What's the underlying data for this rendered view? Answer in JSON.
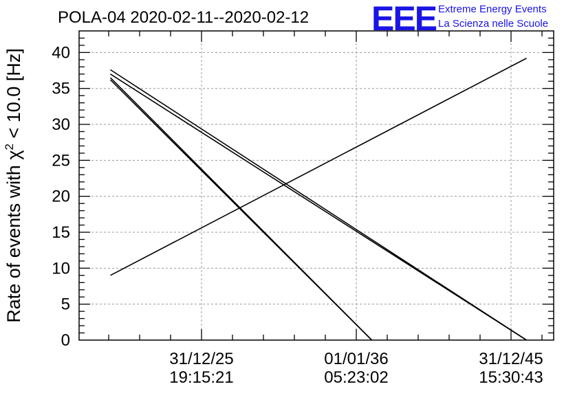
{
  "title": "POLA-04 2020-02-11--2020-02-12",
  "logo": {
    "letters": "EEE",
    "line1": "Extreme Energy Events",
    "line2": "La Scienza nelle Scuole",
    "color": "#1a14e6"
  },
  "chart_data": {
    "type": "line",
    "title": "POLA-04 2020-02-11--2020-02-12",
    "xlabel": "",
    "ylabel": "Rate of events with χ² < 10.0 [Hz]",
    "ylabel_parts": {
      "before": "Rate of events with χ",
      "sup": "2",
      "after": " < 10.0 [Hz]"
    },
    "ylim": [
      0,
      43
    ],
    "y_ticks": [
      0,
      5,
      10,
      15,
      20,
      25,
      30,
      35,
      40
    ],
    "x_ticks": [
      {
        "date": "31/12/25",
        "time": "19:15:21"
      },
      {
        "date": "01/01/36",
        "time": "05:23:02"
      },
      {
        "date": "31/12/45",
        "time": "15:30:43"
      }
    ],
    "grid": true,
    "segments": [
      {
        "x": [
          "2020-02-11",
          "2047-01-01"
        ],
        "y": [
          9.0,
          39.2
        ]
      },
      {
        "x": [
          "2020-02-11",
          "2047-01-01"
        ],
        "y": [
          37.6,
          0
        ]
      },
      {
        "x": [
          "2020-02-11",
          "2047-01-01"
        ],
        "y": [
          37.0,
          0
        ]
      },
      {
        "x": [
          "2020-02-11",
          "2037-01-01"
        ],
        "y": [
          36.5,
          0
        ]
      },
      {
        "x": [
          "2020-02-11",
          "2037-01-01"
        ],
        "y": [
          36.2,
          0
        ]
      }
    ]
  }
}
